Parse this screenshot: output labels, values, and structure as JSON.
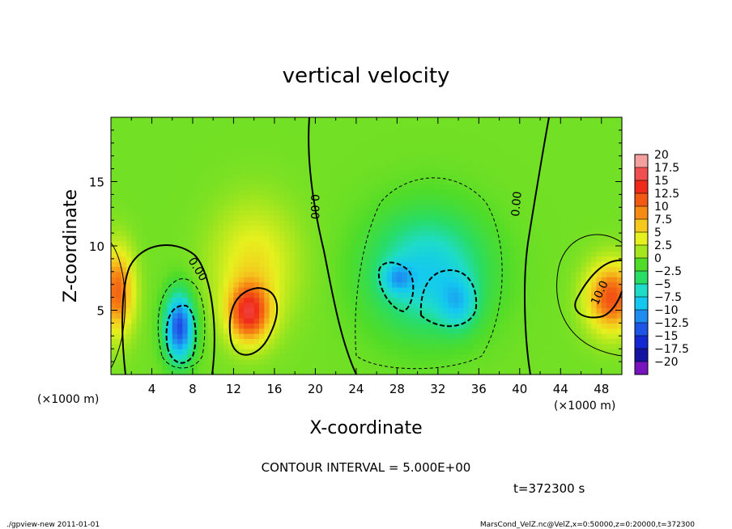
{
  "chart_data": {
    "type": "heatmap",
    "title": "vertical velocity",
    "xlabel": "X-coordinate",
    "ylabel": "Z-coordinate",
    "x_unit_left": "(×1000 m)",
    "x_unit_right": "(×1000 m)",
    "xlim": [
      0,
      50
    ],
    "ylim": [
      0,
      20
    ],
    "x_ticks": [
      4,
      8,
      12,
      16,
      20,
      24,
      28,
      32,
      36,
      40,
      44,
      48
    ],
    "y_ticks": [
      5,
      10,
      15
    ],
    "colorbar": {
      "levels": [
        20,
        17.5,
        15,
        12.5,
        10,
        7.5,
        5,
        2.5,
        0,
        -2.5,
        -5,
        -7.5,
        -10,
        -12.5,
        -15,
        -17.5,
        -20
      ],
      "labels": [
        "20",
        "17.5",
        "15",
        "12.5",
        "10",
        "7.5",
        "5",
        "2.5",
        "0",
        "−2.5",
        "−5",
        "−7.5",
        "−10",
        "−12.5",
        "−15",
        "−17.5",
        "−20"
      ],
      "colors": [
        "#f4a0a0",
        "#f05050",
        "#f02a1a",
        "#f25a14",
        "#f58a14",
        "#f5c81e",
        "#e6f01e",
        "#a5e61e",
        "#50dc28",
        "#28dc64",
        "#1edcc8",
        "#14c8f0",
        "#1e8cf0",
        "#1e55e6",
        "#1428d2",
        "#1414a0",
        "#7814be"
      ]
    },
    "contour_interval_text": "CONTOUR INTERVAL = 5.000E+00",
    "contour_labels": [
      "0.00",
      "0.00",
      "0.00",
      "10.0"
    ],
    "time_text": "t=372300 s",
    "field": {
      "background": 1,
      "features": [
        {
          "x": 0.6,
          "z": 6.5,
          "sx": 1.6,
          "sz": 3.2,
          "amp": 11
        },
        {
          "x": 6.7,
          "z": 3.7,
          "sx": 1.4,
          "sz": 2.6,
          "amp": -14
        },
        {
          "x": 13.5,
          "z": 4.8,
          "sx": 2.0,
          "sz": 2.2,
          "amp": 13
        },
        {
          "x": 14.0,
          "z": 8.5,
          "sx": 4.0,
          "sz": 4.5,
          "amp": 5
        },
        {
          "x": 31.0,
          "z": 8.0,
          "sx": 5.5,
          "sz": 4.5,
          "amp": -8
        },
        {
          "x": 28.0,
          "z": 7.5,
          "sx": 1.5,
          "sz": 1.2,
          "amp": -5
        },
        {
          "x": 34.0,
          "z": 5.5,
          "sx": 1.8,
          "sz": 2.0,
          "amp": -5
        },
        {
          "x": 49.0,
          "z": 6.0,
          "sx": 2.4,
          "sz": 2.6,
          "amp": 12
        }
      ]
    }
  },
  "footer": {
    "left": "./gpview-new   2011-01-01",
    "right": "MarsCond_VelZ.nc@VelZ,x=0:50000,z=0:20000,t=372300"
  }
}
